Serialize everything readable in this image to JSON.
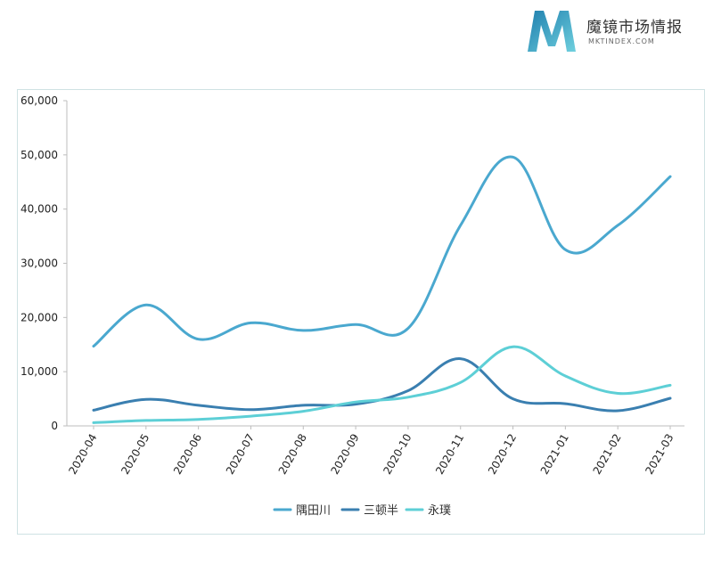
{
  "logo": {
    "title": "魔镜市场情报",
    "subtitle": "MKTINDEX.COM",
    "colors": [
      "#2a8fb8",
      "#5cc4d8"
    ]
  },
  "chart_data": {
    "type": "line",
    "title": "",
    "xlabel": "",
    "ylabel": "",
    "categories": [
      "2020-04",
      "2020-05",
      "2020-06",
      "2020-07",
      "2020-08",
      "2020-09",
      "2020-10",
      "2020-11",
      "2020-12",
      "2021-01",
      "2021-02",
      "2021-03"
    ],
    "ylim": [
      0,
      60000
    ],
    "yticks": [
      0,
      10000,
      20000,
      30000,
      40000,
      50000,
      60000
    ],
    "ytick_labels": [
      "0",
      "10,000",
      "20,000",
      "30,000",
      "40,000",
      "50,000",
      "60,000"
    ],
    "grid": false,
    "legend_position": "bottom",
    "series": [
      {
        "name": "隅田川",
        "color": "#4aa8cf",
        "values": [
          14700,
          22300,
          16000,
          19000,
          17600,
          18700,
          18000,
          37000,
          49600,
          32500,
          37000,
          46000
        ]
      },
      {
        "name": "三顿半",
        "color": "#3a7fb0",
        "values": [
          2900,
          4900,
          3800,
          3000,
          3800,
          4000,
          6500,
          12400,
          5000,
          4100,
          2800,
          5100
        ]
      },
      {
        "name": "永璞",
        "color": "#5dcfd6",
        "values": [
          600,
          1000,
          1200,
          1800,
          2700,
          4400,
          5300,
          8000,
          14600,
          9200,
          6000,
          7500
        ]
      }
    ]
  }
}
